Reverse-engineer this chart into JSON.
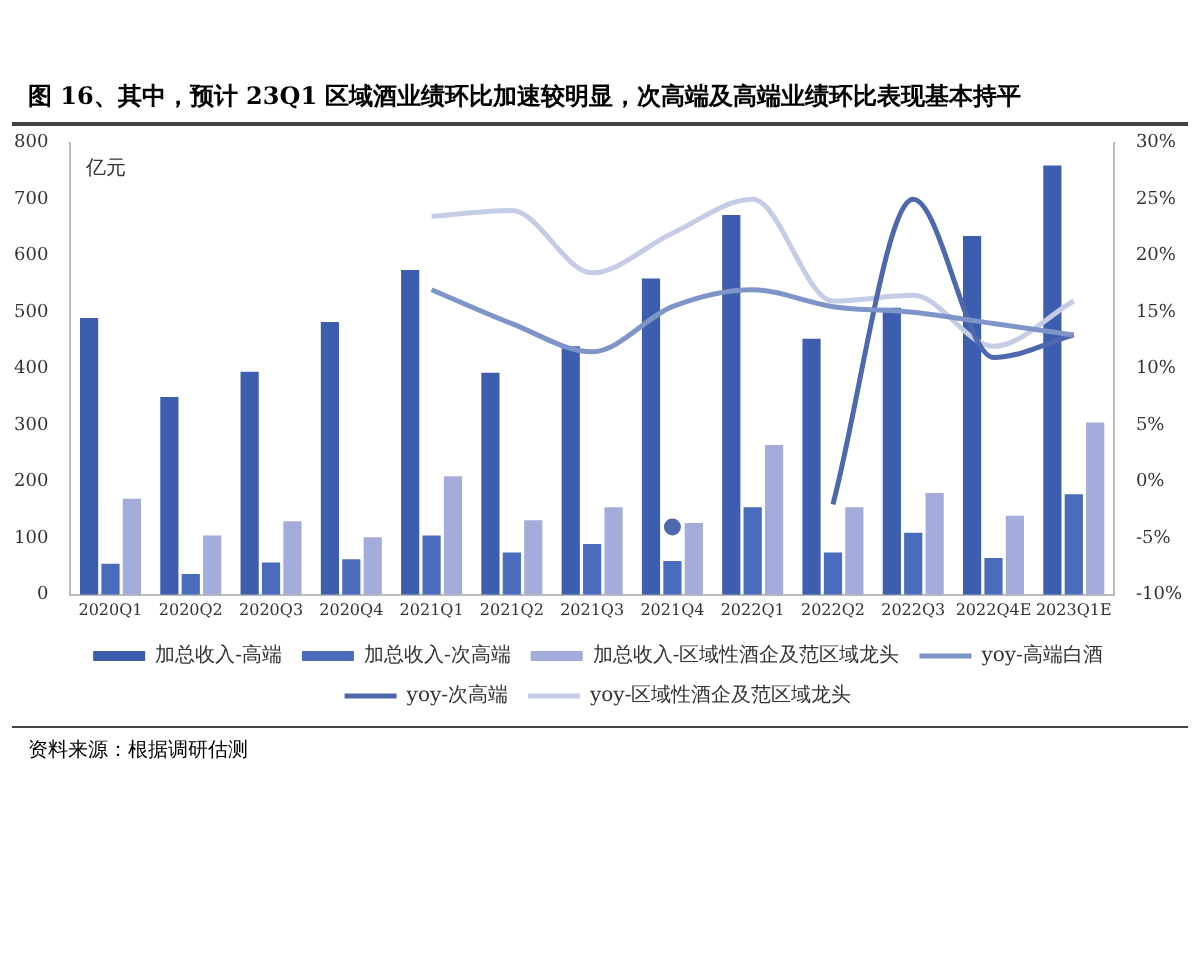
{
  "chart_data": {
    "type": "bar",
    "title": "图 16、其中，预计 23Q1 区域酒业绩环比加速较明显，次高端及高端业绩环比表现基本持平",
    "ylabel": "亿元",
    "categories": [
      "2020Q1",
      "2020Q2",
      "2020Q3",
      "2020Q4",
      "2021Q1",
      "2021Q2",
      "2021Q3",
      "2021Q4",
      "2022Q1",
      "2022Q2",
      "2022Q3",
      "2022Q4E",
      "2023Q1E"
    ],
    "series": [
      {
        "name": "加总收入-高端",
        "color": "#3d5eae",
        "values": [
          490,
          350,
          395,
          483,
          575,
          393,
          440,
          560,
          672,
          453,
          508,
          635,
          760
        ]
      },
      {
        "name": "加总收入-次高端",
        "color": "#4a6cbd",
        "values": [
          55,
          37,
          57,
          63,
          105,
          75,
          90,
          60,
          155,
          75,
          110,
          65,
          178
        ]
      },
      {
        "name": "加总收入-区域性酒企及范区域龙头",
        "color": "#a3acda",
        "values": [
          170,
          105,
          130,
          102,
          210,
          132,
          155,
          127,
          265,
          155,
          180,
          140,
          305
        ]
      },
      {
        "name": "yoy-高端白酒",
        "type": "line",
        "axis": "y2",
        "color": "#7f95c9",
        "values": [
          null,
          null,
          null,
          null,
          17,
          14,
          11.5,
          15.5,
          17,
          15.5,
          15,
          14,
          13
        ]
      },
      {
        "name": "yoy-次高端",
        "type": "line",
        "axis": "y2",
        "color": "#4e68ad",
        "values": [
          null,
          null,
          null,
          null,
          null,
          null,
          null,
          -4,
          null,
          -2,
          25,
          11,
          13
        ]
      },
      {
        "name": "yoy-区域性酒企及范区域龙头",
        "type": "line",
        "axis": "y2",
        "color": "#c5cce6",
        "values": [
          null,
          null,
          null,
          null,
          23.5,
          24,
          18.5,
          22,
          25,
          16,
          16.5,
          12,
          16
        ]
      }
    ],
    "ylim": [
      0,
      800
    ],
    "yticks": [
      0,
      100,
      200,
      300,
      400,
      500,
      600,
      700,
      800
    ],
    "y2lim": [
      -10,
      30
    ],
    "y2ticks": [
      {
        "value": -10,
        "label": "-10%"
      },
      {
        "value": -5,
        "label": "-5%"
      },
      {
        "value": 0,
        "label": "0%"
      },
      {
        "value": 5,
        "label": "5%"
      },
      {
        "value": 10,
        "label": "10%"
      },
      {
        "value": 15,
        "label": "15%"
      },
      {
        "value": 20,
        "label": "20%"
      },
      {
        "value": 25,
        "label": "25%"
      },
      {
        "value": 30,
        "label": "30%"
      }
    ],
    "grid": false,
    "legend": "bottom",
    "marker": "none",
    "annotations": [
      "资料来源：根据调研估测"
    ]
  }
}
